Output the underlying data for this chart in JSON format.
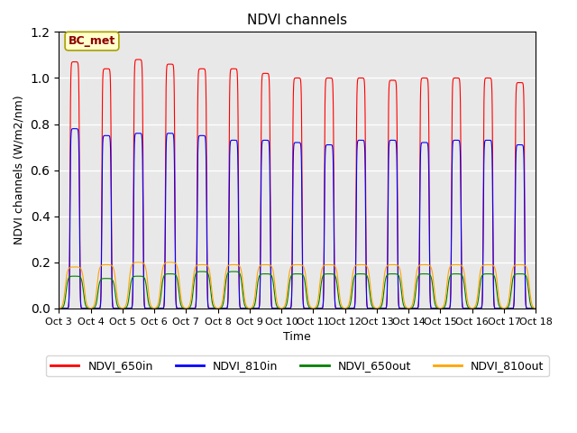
{
  "title": "NDVI channels",
  "xlabel": "Time",
  "ylabel": "NDVI channels (W/m2/nm)",
  "annotation": "BC_met",
  "legend": [
    "NDVI_650in",
    "NDVI_810in",
    "NDVI_650out",
    "NDVI_810out"
  ],
  "colors": [
    "red",
    "blue",
    "green",
    "orange"
  ],
  "ylim": [
    0,
    1.2
  ],
  "num_days": 15,
  "start_day": 3,
  "peaks_650in": [
    1.07,
    1.04,
    1.08,
    1.06,
    1.04,
    1.04,
    1.02,
    1.0,
    1.0,
    1.0,
    0.99,
    1.0,
    1.0,
    1.0,
    0.98
  ],
  "peaks_810in": [
    0.78,
    0.75,
    0.76,
    0.76,
    0.75,
    0.73,
    0.73,
    0.72,
    0.71,
    0.73,
    0.73,
    0.72,
    0.73,
    0.73,
    0.71
  ],
  "peaks_650out": [
    0.14,
    0.13,
    0.14,
    0.15,
    0.16,
    0.16,
    0.15,
    0.15,
    0.15,
    0.15,
    0.15,
    0.15,
    0.15,
    0.15,
    0.15
  ],
  "peaks_810out": [
    0.18,
    0.19,
    0.2,
    0.2,
    0.19,
    0.19,
    0.19,
    0.19,
    0.19,
    0.19,
    0.19,
    0.19,
    0.19,
    0.19,
    0.19
  ],
  "background_color": "#e8e8e8",
  "grid_color": "white",
  "figsize": [
    6.4,
    4.8
  ],
  "dpi": 100
}
